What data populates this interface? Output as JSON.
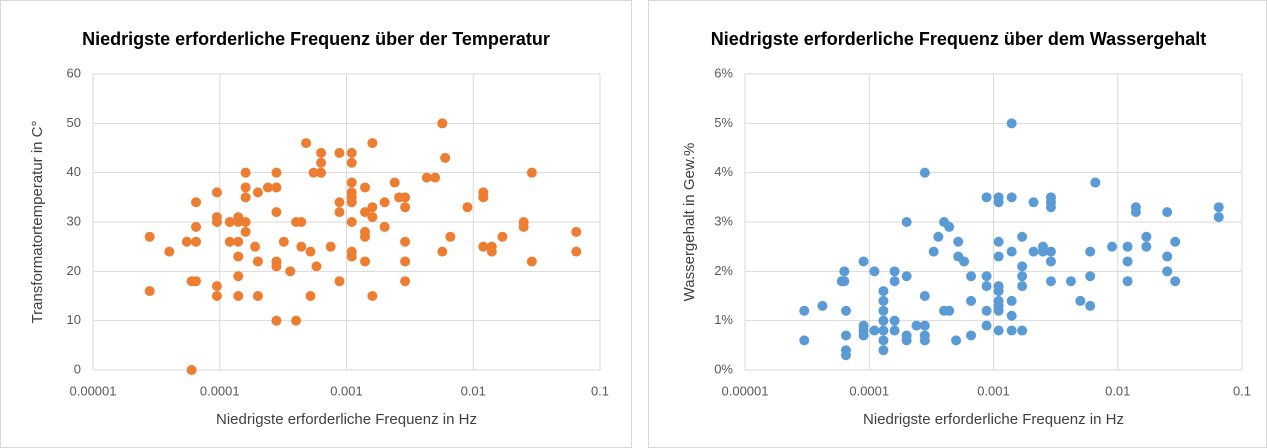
{
  "chart_data": [
    {
      "type": "scatter",
      "title": "Niedrigste erforderliche Frequenz über der Temperatur",
      "x_label": "Niedrigste erforderliche Frequenz in Hz",
      "y_label": "Transformatortemperatur in  C°",
      "color": "#ed7d31",
      "x_log": true,
      "grid": true,
      "xlim": [
        1e-05,
        0.1
      ],
      "xticks": [
        1e-05,
        0.0001,
        0.001,
        0.01,
        0.1
      ],
      "ylim": [
        0,
        60
      ],
      "yticks": [
        0,
        10,
        20,
        30,
        40,
        50,
        60
      ],
      "x": [
        2.8e-05,
        2.8e-05,
        4e-05,
        5.5e-05,
        6e-05,
        6e-05,
        6.5e-05,
        6.5e-05,
        6.5e-05,
        6.5e-05,
        9.5e-05,
        9.5e-05,
        9.5e-05,
        9.5e-05,
        9.5e-05,
        0.00012,
        0.00012,
        0.00014,
        0.00014,
        0.00014,
        0.00014,
        0.00014,
        0.00014,
        0.00016,
        0.00016,
        0.00016,
        0.00016,
        0.00016,
        0.00019,
        0.0002,
        0.0002,
        0.0002,
        0.00024,
        0.00028,
        0.00028,
        0.00028,
        0.00028,
        0.00028,
        0.00028,
        0.00032,
        0.00036,
        0.0004,
        0.0004,
        0.00044,
        0.00044,
        0.00048,
        0.00052,
        0.00052,
        0.00055,
        0.00058,
        0.00063,
        0.00063,
        0.00063,
        0.00075,
        0.00088,
        0.00088,
        0.00088,
        0.00088,
        0.0011,
        0.0011,
        0.0011,
        0.0011,
        0.0011,
        0.0011,
        0.0011,
        0.0011,
        0.0011,
        0.0014,
        0.0014,
        0.0014,
        0.0014,
        0.0014,
        0.0016,
        0.0016,
        0.0016,
        0.0016,
        0.002,
        0.002,
        0.0024,
        0.0026,
        0.0029,
        0.0029,
        0.0029,
        0.0029,
        0.0029,
        0.0043,
        0.005,
        0.0057,
        0.006,
        0.0057,
        0.0066,
        0.009,
        0.012,
        0.012,
        0.012,
        0.014,
        0.014,
        0.017,
        0.025,
        0.025,
        0.029,
        0.029,
        0.065,
        0.065
      ],
      "values": [
        27,
        16,
        24,
        26,
        0,
        18,
        18,
        34,
        29,
        26,
        36,
        31,
        30,
        17,
        15,
        30,
        26,
        31,
        30,
        26,
        23,
        19,
        15,
        40,
        37,
        35,
        30,
        28,
        25,
        36,
        22,
        15,
        37,
        37,
        40,
        32,
        22,
        21,
        10,
        26,
        20,
        30,
        10,
        30,
        25,
        46,
        24,
        15,
        40,
        21,
        44,
        42,
        40,
        25,
        44,
        34,
        32,
        18,
        44,
        42,
        38,
        36,
        35,
        34,
        30,
        24,
        23,
        37,
        32,
        28,
        27,
        22,
        46,
        33,
        31,
        15,
        34,
        29,
        38,
        35,
        35,
        33,
        26,
        22,
        18,
        39,
        39,
        50,
        43,
        24,
        27,
        33,
        36,
        35,
        25,
        25,
        24,
        27,
        30,
        29,
        40,
        22,
        28,
        24
      ]
    },
    {
      "type": "scatter",
      "title": "Niedrigste erforderliche Frequenz über dem Wassergehalt",
      "x_label": "Niedrigste erforderliche Frequenz in Hz",
      "y_label": "Wassergehalt in Gew.%",
      "color": "#5b9bd5",
      "x_log": true,
      "grid": true,
      "xlim": [
        1e-05,
        0.1
      ],
      "xticks": [
        1e-05,
        0.0001,
        0.001,
        0.01,
        0.1
      ],
      "ylim": [
        0,
        6
      ],
      "yticks": [
        {
          "value": 0,
          "label": "0%"
        },
        {
          "value": 1,
          "label": "1%"
        },
        {
          "value": 2,
          "label": "2%"
        },
        {
          "value": 3,
          "label": "3%"
        },
        {
          "value": 4,
          "label": "4%"
        },
        {
          "value": 5,
          "label": "5%"
        },
        {
          "value": 6,
          "label": "6%"
        }
      ],
      "x": [
        3e-05,
        3e-05,
        4.2e-05,
        6e-05,
        6.3e-05,
        6.3e-05,
        6.5e-05,
        6.5e-05,
        6.5e-05,
        6.5e-05,
        9e-05,
        9e-05,
        9e-05,
        9e-05,
        0.00011,
        0.00011,
        0.00013,
        0.00013,
        0.00013,
        0.00013,
        0.00013,
        0.00013,
        0.00013,
        0.00016,
        0.00016,
        0.00016,
        0.00016,
        0.0002,
        0.0002,
        0.0002,
        0.0002,
        0.00024,
        0.00028,
        0.00028,
        0.00028,
        0.00028,
        0.00028,
        0.00033,
        0.00036,
        0.0004,
        0.0004,
        0.00044,
        0.00044,
        0.0005,
        0.00052,
        0.00052,
        0.00058,
        0.00066,
        0.00066,
        0.00066,
        0.00088,
        0.00088,
        0.00088,
        0.00088,
        0.00088,
        0.0011,
        0.0011,
        0.0011,
        0.0011,
        0.0011,
        0.0011,
        0.0011,
        0.0011,
        0.0011,
        0.0011,
        0.0014,
        0.0014,
        0.0014,
        0.0014,
        0.0014,
        0.0014,
        0.0017,
        0.0017,
        0.0017,
        0.0017,
        0.0017,
        0.0021,
        0.0021,
        0.0025,
        0.0025,
        0.0029,
        0.0029,
        0.0029,
        0.0029,
        0.0029,
        0.0029,
        0.0042,
        0.005,
        0.006,
        0.006,
        0.006,
        0.0066,
        0.009,
        0.012,
        0.012,
        0.012,
        0.014,
        0.014,
        0.017,
        0.017,
        0.025,
        0.025,
        0.025,
        0.029,
        0.029,
        0.065,
        0.065
      ],
      "values": [
        1.2,
        0.6,
        1.3,
        1.8,
        2.0,
        1.8,
        1.2,
        0.7,
        0.4,
        0.3,
        2.2,
        0.9,
        0.8,
        0.7,
        2.0,
        0.8,
        1.6,
        1.4,
        1.2,
        1.0,
        0.8,
        0.6,
        0.4,
        2.0,
        1.8,
        1.0,
        0.8,
        3.0,
        1.9,
        0.7,
        0.6,
        0.9,
        4.0,
        1.5,
        0.9,
        0.7,
        0.6,
        2.4,
        2.7,
        3.0,
        1.2,
        2.9,
        1.2,
        0.6,
        2.6,
        2.3,
        2.2,
        1.9,
        1.4,
        0.7,
        3.5,
        1.9,
        1.7,
        1.2,
        0.9,
        3.5,
        3.4,
        2.6,
        2.3,
        1.7,
        1.6,
        1.4,
        1.3,
        1.2,
        0.8,
        5.0,
        3.5,
        2.4,
        1.4,
        1.1,
        0.8,
        2.7,
        2.1,
        1.9,
        1.7,
        0.8,
        3.4,
        2.4,
        2.5,
        2.4,
        3.5,
        3.4,
        3.3,
        2.4,
        2.2,
        1.8,
        1.8,
        1.4,
        2.4,
        1.9,
        1.3,
        3.8,
        2.5,
        2.5,
        2.2,
        1.8,
        3.3,
        3.2,
        2.7,
        2.5,
        3.2,
        2.3,
        2.0,
        2.6,
        1.8,
        3.3,
        3.1
      ]
    }
  ]
}
